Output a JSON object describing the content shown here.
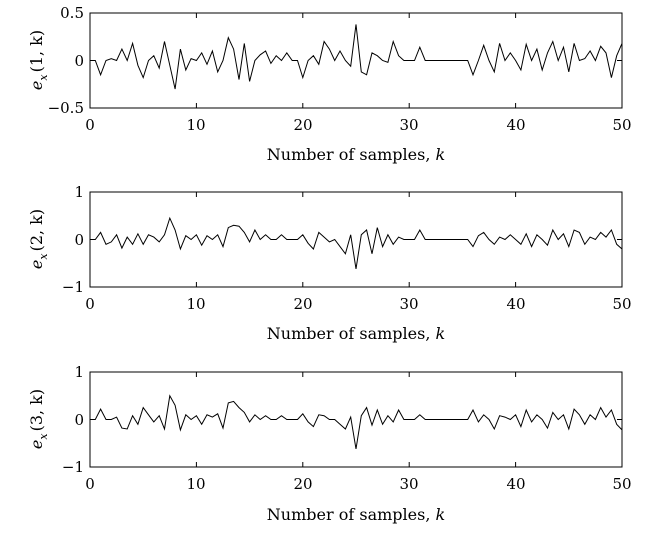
{
  "chart_data": [
    {
      "type": "line",
      "ylabel": {
        "main": "e",
        "sub": "x",
        "arg": "(1, k)"
      },
      "xlabel": {
        "text": "Number of samples, ",
        "var": "k"
      },
      "xlim": [
        0,
        50
      ],
      "ylim": [
        -0.5,
        0.5
      ],
      "xticks": [
        "0",
        "10",
        "20",
        "30",
        "40",
        "50"
      ],
      "yticks": [
        "0.5",
        "0",
        "−0.5"
      ],
      "series_color": "#000000",
      "x": [
        0,
        0.5,
        1,
        1.5,
        2,
        2.5,
        3,
        3.5,
        4,
        4.5,
        5,
        5.5,
        6,
        6.5,
        7,
        7.5,
        8,
        8.5,
        9,
        9.5,
        10,
        10.5,
        11,
        11.5,
        12,
        12.5,
        13,
        13.5,
        14,
        14.5,
        15,
        15.5,
        16,
        16.5,
        17,
        17.5,
        18,
        18.5,
        19,
        19.5,
        20,
        20.5,
        21,
        21.5,
        22,
        22.5,
        23,
        23.5,
        24,
        24.5,
        25,
        25.5,
        26,
        26.5,
        27,
        27.5,
        28,
        28.5,
        29,
        29.5,
        30,
        30.5,
        31,
        31.5,
        32,
        32.5,
        33,
        33.5,
        34,
        34.5,
        35,
        35.5,
        36,
        36.5,
        37,
        37.5,
        38,
        38.5,
        39,
        39.5,
        40,
        40.5,
        41,
        41.5,
        42,
        42.5,
        43,
        43.5,
        44,
        44.5,
        45,
        45.5,
        46,
        46.5,
        47,
        47.5,
        48,
        48.5,
        49,
        49.5,
        50
      ],
      "values": [
        0,
        0,
        -0.15,
        0,
        0.02,
        0,
        0.12,
        0,
        0.18,
        -0.05,
        -0.18,
        0,
        0.05,
        -0.08,
        0.2,
        -0.05,
        -0.3,
        0.12,
        -0.1,
        0.02,
        0,
        0.08,
        -0.04,
        0.1,
        -0.12,
        0,
        0.24,
        0.12,
        -0.2,
        0.18,
        -0.22,
        0,
        0.06,
        0.1,
        -0.03,
        0.05,
        0,
        0.08,
        0,
        0,
        -0.18,
        0,
        0.05,
        -0.04,
        0.2,
        0.12,
        0,
        0.1,
        0,
        -0.06,
        0.38,
        -0.12,
        -0.15,
        0.08,
        0.05,
        0,
        -0.02,
        0.2,
        0.05,
        0,
        0,
        0,
        0.14,
        0,
        0,
        0,
        0,
        0,
        0,
        0,
        0,
        0,
        -0.15,
        0,
        0.16,
        0,
        -0.12,
        0.18,
        0,
        0.08,
        0,
        -0.1,
        0.17,
        0,
        0.12,
        -0.1,
        0.08,
        0.2,
        0,
        0.14,
        -0.12,
        0.18,
        0,
        0.02,
        0.1,
        0,
        0.15,
        0.08,
        -0.18,
        0.05,
        0.18
      ]
    },
    {
      "type": "line",
      "ylabel": {
        "main": "e",
        "sub": "x",
        "arg": "(2, k)"
      },
      "xlabel": {
        "text": "Number of samples, ",
        "var": "k"
      },
      "xlim": [
        0,
        50
      ],
      "ylim": [
        -1,
        1
      ],
      "xticks": [
        "0",
        "10",
        "20",
        "30",
        "40",
        "50"
      ],
      "yticks": [
        "1",
        "0",
        "−1"
      ],
      "series_color": "#000000",
      "x": [
        0,
        0.5,
        1,
        1.5,
        2,
        2.5,
        3,
        3.5,
        4,
        4.5,
        5,
        5.5,
        6,
        6.5,
        7,
        7.5,
        8,
        8.5,
        9,
        9.5,
        10,
        10.5,
        11,
        11.5,
        12,
        12.5,
        13,
        13.5,
        14,
        14.5,
        15,
        15.5,
        16,
        16.5,
        17,
        17.5,
        18,
        18.5,
        19,
        19.5,
        20,
        20.5,
        21,
        21.5,
        22,
        22.5,
        23,
        23.5,
        24,
        24.5,
        25,
        25.5,
        26,
        26.5,
        27,
        27.5,
        28,
        28.5,
        29,
        29.5,
        30,
        30.5,
        31,
        31.5,
        32,
        32.5,
        33,
        33.5,
        34,
        34.5,
        35,
        35.5,
        36,
        36.5,
        37,
        37.5,
        38,
        38.5,
        39,
        39.5,
        40,
        40.5,
        41,
        41.5,
        42,
        42.5,
        43,
        43.5,
        44,
        44.5,
        45,
        45.5,
        46,
        46.5,
        47,
        47.5,
        48,
        48.5,
        49,
        49.5,
        50
      ],
      "values": [
        0,
        0,
        0.15,
        -0.1,
        -0.05,
        0.1,
        -0.18,
        0.05,
        -0.1,
        0.12,
        -0.1,
        0.1,
        0.05,
        -0.05,
        0.1,
        0.45,
        0.2,
        -0.2,
        0.08,
        0,
        0.1,
        -0.12,
        0.08,
        0,
        0.1,
        -0.15,
        0.25,
        0.3,
        0.28,
        0.15,
        -0.05,
        0.2,
        0,
        0.1,
        0,
        0,
        0.1,
        0,
        0,
        0,
        0.1,
        -0.08,
        -0.2,
        0.15,
        0.05,
        -0.05,
        0,
        -0.15,
        -0.3,
        0.1,
        -0.62,
        0.1,
        0.2,
        -0.3,
        0.25,
        -0.15,
        0.1,
        -0.1,
        0.05,
        0,
        0,
        0,
        0.2,
        0,
        0,
        0,
        0,
        0,
        0,
        0,
        0,
        0,
        -0.15,
        0.08,
        0.15,
        0,
        -0.1,
        0.05,
        0,
        0.1,
        0,
        -0.1,
        0.12,
        -0.15,
        0.1,
        0,
        -0.12,
        0.2,
        0,
        0.12,
        -0.15,
        0.2,
        0.15,
        -0.1,
        0.05,
        0,
        0.15,
        0.05,
        0.2,
        -0.1,
        -0.2
      ]
    },
    {
      "type": "line",
      "ylabel": {
        "main": "e",
        "sub": "x",
        "arg": "(3, k)"
      },
      "xlabel": {
        "text": "Number of samples, ",
        "var": "k"
      },
      "xlim": [
        0,
        50
      ],
      "ylim": [
        -1,
        1
      ],
      "xticks": [
        "0",
        "10",
        "20",
        "30",
        "40",
        "50"
      ],
      "yticks": [
        "1",
        "0",
        "−1"
      ],
      "series_color": "#000000",
      "x": [
        0,
        0.5,
        1,
        1.5,
        2,
        2.5,
        3,
        3.5,
        4,
        4.5,
        5,
        5.5,
        6,
        6.5,
        7,
        7.5,
        8,
        8.5,
        9,
        9.5,
        10,
        10.5,
        11,
        11.5,
        12,
        12.5,
        13,
        13.5,
        14,
        14.5,
        15,
        15.5,
        16,
        16.5,
        17,
        17.5,
        18,
        18.5,
        19,
        19.5,
        20,
        20.5,
        21,
        21.5,
        22,
        22.5,
        23,
        23.5,
        24,
        24.5,
        25,
        25.5,
        26,
        26.5,
        27,
        27.5,
        28,
        28.5,
        29,
        29.5,
        30,
        30.5,
        31,
        31.5,
        32,
        32.5,
        33,
        33.5,
        34,
        34.5,
        35,
        35.5,
        36,
        36.5,
        37,
        37.5,
        38,
        38.5,
        39,
        39.5,
        40,
        40.5,
        41,
        41.5,
        42,
        42.5,
        43,
        43.5,
        44,
        44.5,
        45,
        45.5,
        46,
        46.5,
        47,
        47.5,
        48,
        48.5,
        49,
        49.5,
        50
      ],
      "values": [
        0,
        0,
        0.22,
        0,
        0,
        0.05,
        -0.18,
        -0.2,
        0.08,
        -0.1,
        0.25,
        0.1,
        -0.05,
        0.08,
        -0.2,
        0.5,
        0.3,
        -0.22,
        0.1,
        0,
        0.08,
        -0.1,
        0.1,
        0.05,
        0.12,
        -0.18,
        0.35,
        0.38,
        0.25,
        0.15,
        -0.05,
        0.1,
        0,
        0.08,
        0,
        0,
        0.08,
        0,
        0,
        0,
        0.12,
        -0.05,
        -0.15,
        0.1,
        0.08,
        0,
        0,
        -0.1,
        -0.2,
        0.05,
        -0.62,
        0.08,
        0.25,
        -0.12,
        0.2,
        -0.1,
        0.08,
        -0.05,
        0.2,
        0,
        0,
        0,
        0.1,
        0,
        0,
        0,
        0,
        0,
        0,
        0,
        0,
        0,
        0.2,
        -0.05,
        0.1,
        0,
        -0.2,
        0.08,
        0.05,
        0,
        0.1,
        -0.15,
        0.2,
        -0.05,
        0.1,
        0,
        -0.18,
        0.15,
        0,
        0.1,
        -0.2,
        0.22,
        0.1,
        -0.1,
        0.1,
        0,
        0.25,
        0.05,
        0.2,
        -0.1,
        -0.22
      ]
    }
  ]
}
